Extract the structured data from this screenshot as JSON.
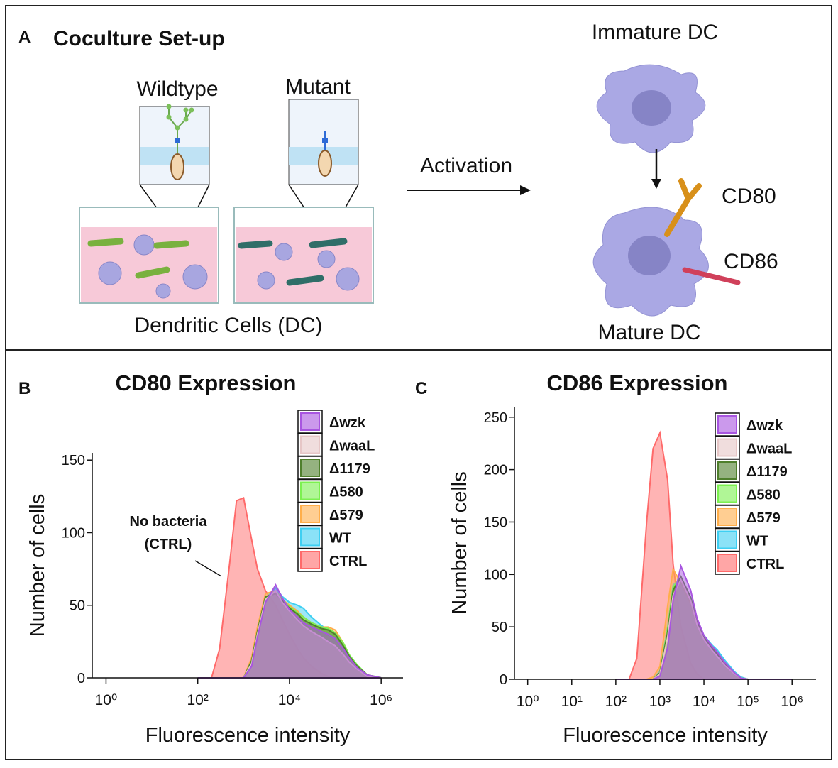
{
  "panel_a": {
    "letter": "A",
    "title": "Coculture Set-up",
    "wildtype": "Wildtype",
    "mutant": "Mutant",
    "wells_caption": "Dendritic Cells (DC)",
    "arrow_label": "Activation",
    "immature": "Immature DC",
    "mature": "Mature DC",
    "marker1": "CD80",
    "marker2": "CD86"
  },
  "chart_data": [
    {
      "type": "area",
      "letter": "B",
      "title": "CD80 Expression",
      "xlabel": "Fluorescence intensity",
      "ylabel": "Number of cells",
      "log_x": true,
      "annotation": [
        "No bacteria",
        "(CTRL)"
      ],
      "x": [
        100,
        200,
        300,
        500,
        700,
        1000,
        1500,
        2000,
        3000,
        5000,
        7000,
        10000,
        15000,
        20000,
        30000,
        50000,
        70000,
        100000,
        150000,
        200000,
        300000,
        500000,
        1000000
      ],
      "xlim": [
        0.5,
        3000000
      ],
      "xticks": [
        {
          "value": 1,
          "label": "10⁰"
        },
        {
          "value": 100,
          "label": "10²"
        },
        {
          "value": 10000,
          "label": "10⁴"
        },
        {
          "value": 1000000,
          "label": "10⁶"
        }
      ],
      "ylim": [
        0,
        155
      ],
      "yticks": [
        0,
        50,
        100,
        150
      ],
      "series": [
        {
          "name": "Δwzk",
          "color": "#a855e0",
          "values": [
            0,
            0,
            0,
            0,
            0,
            0,
            8,
            28,
            52,
            64,
            55,
            47,
            42,
            38,
            35,
            32,
            30,
            27,
            20,
            14,
            7,
            2,
            0
          ]
        },
        {
          "name": "ΔwaaL",
          "color": "#e6c6c6",
          "values": [
            0,
            0,
            0,
            0,
            0,
            0,
            10,
            30,
            54,
            60,
            52,
            46,
            40,
            36,
            32,
            28,
            25,
            22,
            16,
            11,
            6,
            1,
            0
          ]
        },
        {
          "name": "Δ1179",
          "color": "#4f7f2c",
          "values": [
            0,
            0,
            0,
            0,
            0,
            0,
            12,
            32,
            56,
            58,
            53,
            48,
            44,
            40,
            37,
            34,
            33,
            30,
            22,
            15,
            8,
            2,
            0
          ]
        },
        {
          "name": "Δ580",
          "color": "#7cf050",
          "values": [
            0,
            0,
            0,
            0,
            0,
            0,
            10,
            30,
            55,
            60,
            54,
            49,
            45,
            42,
            38,
            35,
            34,
            31,
            24,
            16,
            9,
            2,
            0
          ]
        },
        {
          "name": "Δ579",
          "color": "#ffae4a",
          "values": [
            0,
            0,
            0,
            0,
            0,
            0,
            14,
            35,
            58,
            60,
            54,
            50,
            46,
            42,
            38,
            35,
            35,
            33,
            24,
            16,
            8,
            2,
            0
          ]
        },
        {
          "name": "WT",
          "color": "#3ecff2",
          "values": [
            0,
            0,
            0,
            0,
            0,
            0,
            10,
            30,
            55,
            62,
            56,
            52,
            50,
            48,
            42,
            36,
            33,
            30,
            22,
            15,
            8,
            2,
            0
          ]
        },
        {
          "name": "CTRL",
          "color": "#ff6a6a",
          "values": [
            0,
            0,
            20,
            80,
            122,
            124,
            95,
            75,
            60,
            50,
            40,
            30,
            20,
            14,
            8,
            3,
            1,
            0,
            0,
            0,
            0,
            0,
            0
          ]
        }
      ]
    },
    {
      "type": "area",
      "letter": "C",
      "title": "CD86 Expression",
      "xlabel": "Fluorescence intensity",
      "ylabel": "Number of cells",
      "log_x": true,
      "x": [
        100,
        200,
        300,
        500,
        700,
        1000,
        1500,
        2000,
        3000,
        5000,
        7000,
        10000,
        15000,
        20000,
        30000,
        50000,
        70000,
        100000,
        150000,
        200000,
        300000,
        500000,
        1000000
      ],
      "xlim": [
        0.5,
        3500000
      ],
      "xticks": [
        {
          "value": 1,
          "label": "10⁰"
        },
        {
          "value": 10,
          "label": "10¹"
        },
        {
          "value": 100,
          "label": "10²"
        },
        {
          "value": 1000,
          "label": "10³"
        },
        {
          "value": 10000,
          "label": "10⁴"
        },
        {
          "value": 100000,
          "label": "10⁵"
        },
        {
          "value": 1000000,
          "label": "10⁶"
        }
      ],
      "ylim": [
        0,
        260
      ],
      "yticks": [
        0,
        50,
        100,
        150,
        200,
        250
      ],
      "series": [
        {
          "name": "Δwzk",
          "color": "#a855e0",
          "values": [
            0,
            0,
            0,
            0,
            0,
            3,
            30,
            75,
            108,
            85,
            58,
            42,
            32,
            26,
            16,
            6,
            1,
            0,
            0,
            0,
            0,
            0,
            0
          ]
        },
        {
          "name": "ΔwaaL",
          "color": "#e6c6c6",
          "values": [
            0,
            0,
            0,
            0,
            0,
            5,
            40,
            80,
            95,
            75,
            52,
            38,
            28,
            22,
            13,
            5,
            1,
            0,
            0,
            0,
            0,
            0,
            0
          ]
        },
        {
          "name": "Δ1179",
          "color": "#4f7f2c",
          "values": [
            0,
            0,
            0,
            0,
            0,
            6,
            45,
            85,
            98,
            78,
            55,
            40,
            30,
            24,
            14,
            5,
            1,
            0,
            0,
            0,
            0,
            0,
            0
          ]
        },
        {
          "name": "Δ580",
          "color": "#7cf050",
          "values": [
            0,
            0,
            0,
            0,
            0,
            6,
            48,
            88,
            96,
            76,
            54,
            40,
            31,
            25,
            15,
            6,
            1,
            0,
            0,
            0,
            0,
            0,
            0
          ]
        },
        {
          "name": "Δ579",
          "color": "#ffae4a",
          "values": [
            0,
            0,
            0,
            0,
            2,
            12,
            70,
            105,
            92,
            72,
            52,
            38,
            29,
            23,
            13,
            5,
            1,
            0,
            0,
            0,
            0,
            0,
            0
          ]
        },
        {
          "name": "WT",
          "color": "#3ecff2",
          "values": [
            0,
            0,
            0,
            0,
            0,
            8,
            50,
            90,
            96,
            78,
            56,
            42,
            33,
            28,
            18,
            7,
            2,
            0,
            0,
            0,
            0,
            0,
            0
          ]
        },
        {
          "name": "CTRL",
          "color": "#ff6a6a",
          "values": [
            0,
            0,
            20,
            150,
            220,
            235,
            190,
            110,
            50,
            15,
            5,
            0,
            0,
            0,
            0,
            0,
            0,
            0,
            0,
            0,
            0,
            0,
            0
          ]
        }
      ]
    }
  ]
}
